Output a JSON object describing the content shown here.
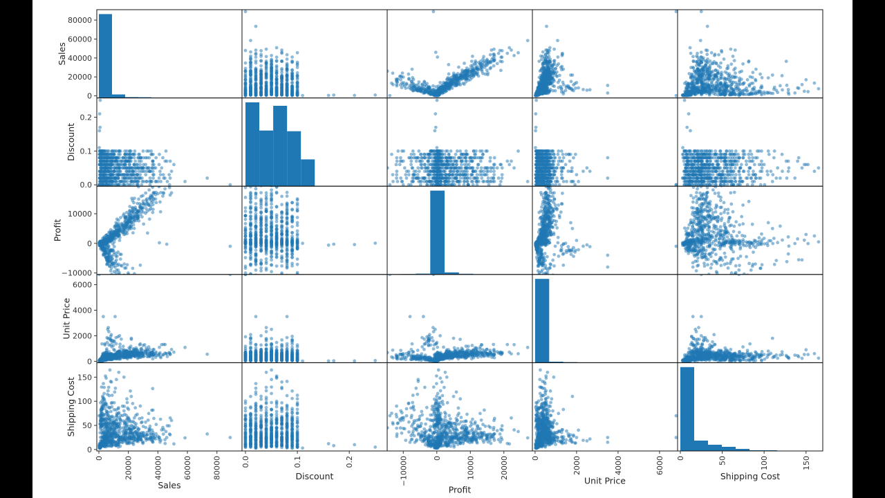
{
  "chart_data": {
    "type": "scatter",
    "subtype": "scatter_matrix",
    "diagonal": "histogram",
    "grid": false,
    "legend": "none",
    "colors": {
      "marker": "#1f77b4",
      "frame": "#000000",
      "side_bars": "#000000"
    },
    "marker_alpha": 0.5,
    "variables": [
      {
        "label": "Sales",
        "xlim": [
          -1400,
          97000
        ],
        "ylim": [
          -2200,
          91000
        ],
        "ticks": [
          0,
          20000,
          40000,
          60000,
          80000
        ],
        "tick_labels": [
          "0",
          "20000",
          "40000",
          "60000",
          "80000"
        ],
        "hist_range": [
          0,
          89000
        ],
        "hist_counts": [
          120,
          5,
          1.2,
          1,
          0.3,
          0,
          0,
          0,
          0,
          0.2
        ]
      },
      {
        "label": "Discount",
        "xlim": [
          -0.0067,
          0.273
        ],
        "ylim": [
          -0.004,
          0.257
        ],
        "ticks": [
          0.0,
          0.1,
          0.2
        ],
        "tick_labels": [
          "0.0",
          "0.1",
          "0.2"
        ],
        "hist_range": [
          0,
          0.267
        ],
        "hist_counts": [
          122,
          81,
          117,
          80,
          39,
          0.3,
          0.3,
          0.3,
          0.2,
          0.2
        ]
      },
      {
        "label": "Profit",
        "xlim": [
          -14800,
          28500
        ],
        "ylim": [
          -10500,
          19300
        ],
        "ticks": [
          -10000,
          0,
          10000,
          20000
        ],
        "tick_labels": [
          "−10000",
          "0",
          "10000",
          "20000"
        ],
        "hist_range": [
          -14800,
          28000
        ],
        "hist_counts": [
          0.3,
          0.6,
          1.2,
          122,
          3,
          1,
          0.3,
          0,
          0,
          0.2
        ]
      },
      {
        "label": "Unit Price",
        "xlim": [
          -130,
          6870
        ],
        "ylim": [
          -110,
          6800
        ],
        "ticks": [
          0,
          2000,
          4000,
          6000
        ],
        "tick_labels": [
          "0",
          "2000",
          "4000",
          "6000"
        ],
        "hist_range": [
          0,
          6800
        ],
        "hist_counts": [
          122,
          1.5,
          0.8,
          0.3,
          0,
          0.3,
          0,
          0,
          0,
          0.2
        ]
      },
      {
        "label": "Shipping Cost",
        "xlim": [
          -3.3,
          170
        ],
        "ylim": [
          -3,
          180
        ],
        "ticks": [
          0,
          50,
          100,
          150
        ],
        "tick_labels": [
          "0",
          "50",
          "100",
          "150"
        ],
        "hist_range": [
          0,
          165
        ],
        "hist_counts": [
          121,
          15,
          9,
          6,
          3,
          1,
          1,
          0.3,
          0.3,
          0.5
        ]
      }
    ],
    "records_columns": [
      "Sales",
      "Discount",
      "Profit",
      "Unit Price",
      "Shipping Cost"
    ],
    "records": [
      [
        1200,
        0.01,
        150,
        120,
        8
      ],
      [
        3500,
        0.02,
        600,
        250,
        15
      ],
      [
        5200,
        0.03,
        900,
        180,
        22
      ],
      [
        8000,
        0.04,
        2100,
        400,
        35
      ],
      [
        10500,
        0.05,
        3200,
        350,
        45
      ],
      [
        13000,
        0.06,
        4500,
        500,
        55
      ],
      [
        15500,
        0.07,
        5500,
        420,
        25
      ],
      [
        18000,
        0.08,
        6500,
        600,
        20
      ],
      [
        21000,
        0.09,
        8000,
        550,
        25
      ],
      [
        25000,
        0.05,
        10000,
        700,
        22
      ],
      [
        28000,
        0.03,
        12000,
        750,
        25
      ],
      [
        30000,
        0.1,
        13500,
        650,
        28
      ],
      [
        600,
        0.0,
        -200,
        60,
        5
      ],
      [
        2500,
        0.1,
        -1500,
        90,
        12
      ],
      [
        4500,
        0.06,
        -3500,
        300,
        30
      ],
      [
        7000,
        0.08,
        -6000,
        200,
        40
      ],
      [
        12000,
        0.04,
        -9000,
        350,
        70
      ],
      [
        16000,
        0.02,
        -12000,
        400,
        90
      ],
      [
        20000,
        0.07,
        -10500,
        550,
        65
      ],
      [
        9000,
        0.09,
        -2500,
        1500,
        20
      ],
      [
        14000,
        0.03,
        1000,
        2000,
        25
      ],
      [
        6000,
        0.05,
        -500,
        2500,
        18
      ],
      [
        3000,
        0.02,
        -4000,
        3500,
        25
      ],
      [
        11000,
        0.08,
        -8000,
        3500,
        15
      ],
      [
        22000,
        0.01,
        5000,
        1800,
        110
      ],
      [
        17000,
        0.06,
        3000,
        900,
        150
      ],
      [
        13500,
        0.04,
        2500,
        600,
        160
      ],
      [
        8500,
        0.07,
        1500,
        450,
        140
      ],
      [
        19000,
        0.1,
        7000,
        800,
        105
      ],
      [
        4000,
        0.09,
        300,
        500,
        85
      ],
      [
        33000,
        0.05,
        3500,
        900,
        22
      ],
      [
        41000,
        0.09,
        200,
        1100,
        25
      ],
      [
        46000,
        0.07,
        -300,
        600,
        25
      ],
      [
        89000,
        0.0,
        -1000,
        6800,
        25
      ],
      [
        500,
        0.21,
        -400,
        30,
        10
      ],
      [
        800,
        0.17,
        -300,
        40,
        8
      ],
      [
        400,
        0.16,
        -600,
        25,
        12
      ],
      [
        900,
        0.25,
        50,
        60,
        5
      ],
      [
        300,
        0.11,
        20,
        20,
        3
      ],
      [
        200,
        0.0,
        -14000,
        6800,
        70
      ],
      [
        7500,
        0.05,
        500,
        250,
        165
      ],
      [
        2000,
        0.03,
        200,
        150,
        60
      ],
      [
        5500,
        0.08,
        1200,
        300,
        75
      ],
      [
        24000,
        0.06,
        9000,
        650,
        45
      ],
      [
        27000,
        0.02,
        11000,
        580,
        35
      ],
      [
        1500,
        0.04,
        -800,
        70,
        50
      ],
      [
        9500,
        0.01,
        2800,
        330,
        10
      ]
    ]
  }
}
